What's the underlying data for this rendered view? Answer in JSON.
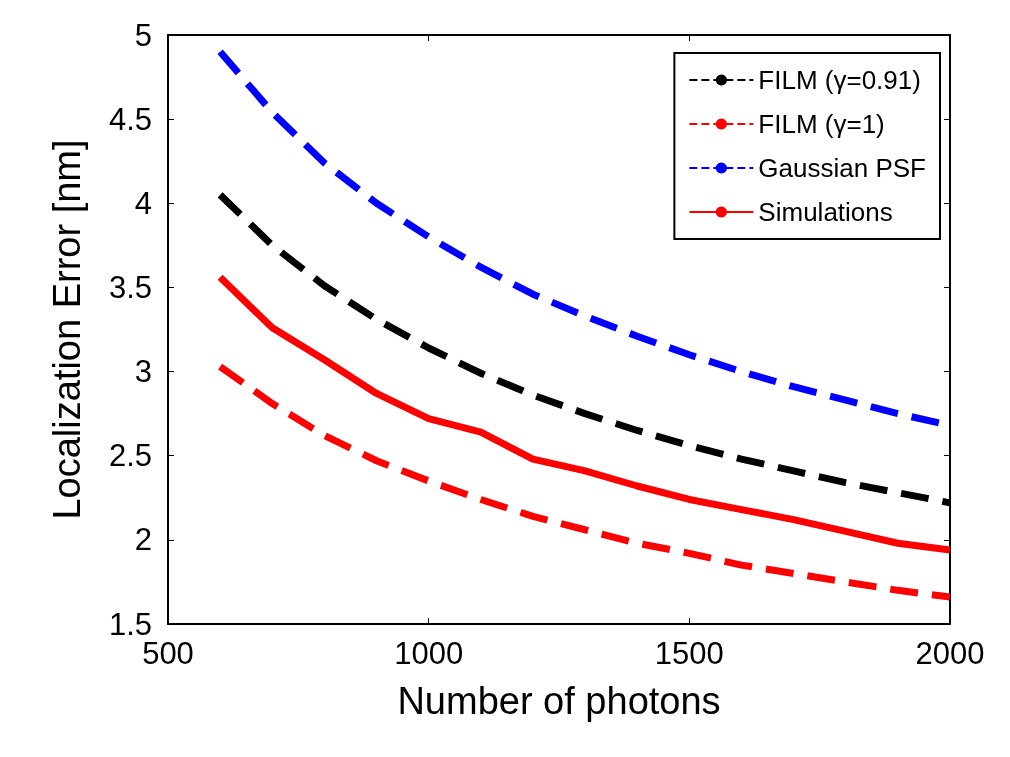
{
  "chart_data": {
    "type": "line",
    "xlabel": "Number of photons",
    "ylabel": "Localization Error [nm]",
    "x": [
      600,
      700,
      800,
      900,
      1000,
      1100,
      1200,
      1300,
      1400,
      1500,
      1600,
      1700,
      1800,
      1900,
      2000
    ],
    "series": [
      {
        "name": "FILM (γ=0.91)",
        "color": "#000000",
        "line_style": "dashed",
        "values": [
          4.05,
          3.75,
          3.51,
          3.31,
          3.14,
          2.99,
          2.86,
          2.75,
          2.65,
          2.56,
          2.48,
          2.41,
          2.34,
          2.28,
          2.22
        ]
      },
      {
        "name": "FILM (γ=1)",
        "color": "#ff0000",
        "line_style": "dashed",
        "values": [
          3.03,
          2.81,
          2.62,
          2.47,
          2.35,
          2.24,
          2.14,
          2.06,
          1.98,
          1.92,
          1.85,
          1.8,
          1.75,
          1.7,
          1.66
        ]
      },
      {
        "name": "Gaussian PSF",
        "color": "#0000ff",
        "line_style": "dashed",
        "values": [
          4.9,
          4.54,
          4.24,
          4.0,
          3.8,
          3.62,
          3.46,
          3.33,
          3.21,
          3.1,
          3.0,
          2.91,
          2.83,
          2.75,
          2.68
        ]
      },
      {
        "name": "Simulations",
        "color": "#ff0000",
        "line_style": "solid",
        "values": [
          3.56,
          3.26,
          3.07,
          2.87,
          2.72,
          2.64,
          2.48,
          2.41,
          2.32,
          2.24,
          2.18,
          2.12,
          2.05,
          1.98,
          1.94
        ]
      }
    ],
    "xlim": [
      500,
      2000
    ],
    "xticks": [
      500,
      1000,
      1500,
      2000
    ],
    "ylim": [
      1.5,
      5
    ],
    "yticks": [
      1.5,
      2,
      2.5,
      3,
      3.5,
      4,
      4.5,
      5
    ],
    "grid": false,
    "legend": "top right",
    "marker": "none"
  }
}
